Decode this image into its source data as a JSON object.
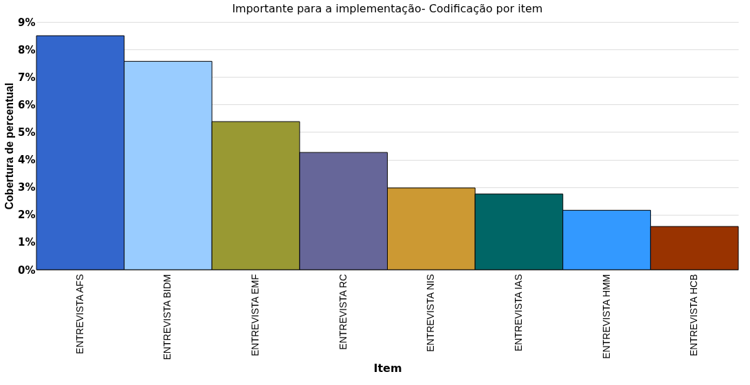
{
  "chart_data": {
    "type": "bar",
    "title": "Importante para a implementação- Codificação por item",
    "xlabel": "Item",
    "ylabel": "Cobertura de percentual",
    "categories": [
      "ENTREVISTA AFS",
      "ENTREVISTA BIDM",
      "ENTREVISTA EMF",
      "ENTREVISTA RC",
      "ENTREVISTA NIS",
      "ENTREVISTA IAS",
      "ENTREVISTA HMM",
      "ENTREVISTA HCB"
    ],
    "values": [
      8.5,
      7.57,
      5.38,
      4.26,
      2.97,
      2.75,
      2.16,
      1.57
    ],
    "colors": [
      "#3366cc",
      "#99ccff",
      "#999933",
      "#666699",
      "#cc9933",
      "#006666",
      "#3399ff",
      "#993300"
    ],
    "ylim": [
      0,
      9
    ],
    "yticks": [
      {
        "value": 0,
        "label": "0%"
      },
      {
        "value": 1,
        "label": "1%"
      },
      {
        "value": 2,
        "label": "2%"
      },
      {
        "value": 3,
        "label": "3%"
      },
      {
        "value": 4,
        "label": "4%"
      },
      {
        "value": 5,
        "label": "5%"
      },
      {
        "value": 6,
        "label": "6%"
      },
      {
        "value": 7,
        "label": "7%"
      },
      {
        "value": 8,
        "label": "8%"
      },
      {
        "value": 9,
        "label": "9%"
      }
    ],
    "grid": "y",
    "legend": false
  }
}
